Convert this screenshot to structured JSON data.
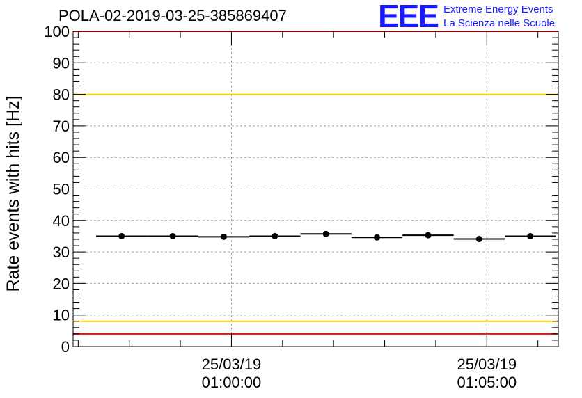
{
  "header": {
    "title": "POLA-02-2019-03-25-385869407",
    "logo": "EEE",
    "logo_line1": "Extreme Energy Events",
    "logo_line2": "La Scienza nelle Scuole",
    "logo_color": "#1a1aff"
  },
  "chart_data": {
    "type": "scatter",
    "title": "POLA-02-2019-03-25-385869407",
    "ylabel": "Rate events with hits [Hz]",
    "xlabel": "",
    "ylim": [
      0,
      100
    ],
    "y_ticks": [
      0,
      10,
      20,
      30,
      40,
      50,
      60,
      70,
      80,
      90,
      100
    ],
    "x_ticks": [
      {
        "t": 2.15,
        "date": "25/03/19",
        "time": "01:00:00"
      },
      {
        "t": 7.15,
        "date": "25/03/19",
        "time": "01:05:00"
      }
    ],
    "xlim": [
      -0.95,
      8.55
    ],
    "points": [
      {
        "x": 0.0,
        "y": 35.0
      },
      {
        "x": 1.0,
        "y": 35.0
      },
      {
        "x": 2.0,
        "y": 34.8
      },
      {
        "x": 3.0,
        "y": 35.0
      },
      {
        "x": 4.0,
        "y": 35.7
      },
      {
        "x": 5.0,
        "y": 34.6
      },
      {
        "x": 6.0,
        "y": 35.3
      },
      {
        "x": 7.0,
        "y": 34.1
      },
      {
        "x": 8.0,
        "y": 35.0
      }
    ],
    "bin_halfwidth": 0.5,
    "reference_lines": [
      {
        "y": 100,
        "color": "#ff0000"
      },
      {
        "y": 80,
        "color": "#ffcc00"
      },
      {
        "y": 8,
        "color": "#ffcc00"
      },
      {
        "y": 4,
        "color": "#ff0000"
      }
    ],
    "grid": true,
    "marker_color": "#000000"
  }
}
